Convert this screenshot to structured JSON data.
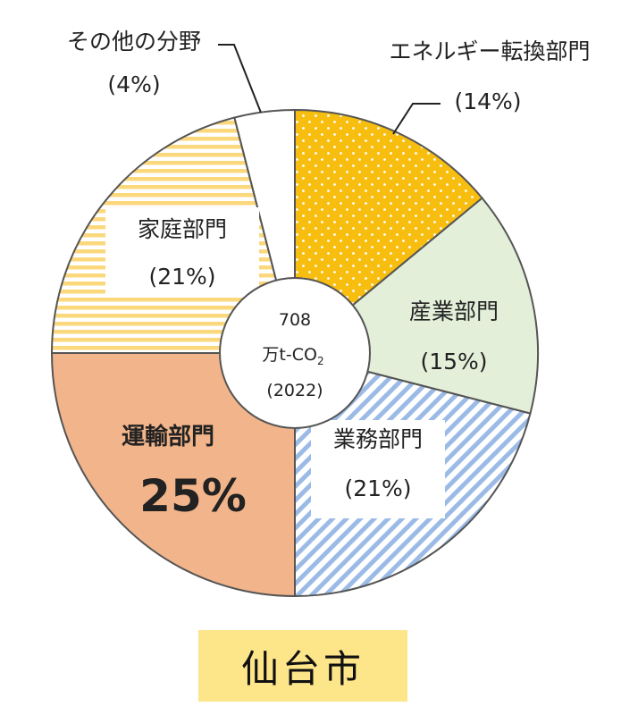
{
  "chart_data": {
    "type": "pie",
    "slices": [
      {
        "label": "エネルギー転換部門",
        "pct_label": "(14%)",
        "value": 14,
        "color": "#f7be10",
        "pattern": "dots"
      },
      {
        "label": "産業部門",
        "pct_label": "(15%)",
        "value": 15,
        "color": "#e3efd9",
        "pattern": "solid"
      },
      {
        "label": "業務部門",
        "pct_label": "(21%)",
        "value": 21,
        "color": "#9bbbe6",
        "pattern": "diagonal"
      },
      {
        "label": "運輸部門",
        "pct_label": "25%",
        "value": 25,
        "color": "#f2b48a",
        "pattern": "solid"
      },
      {
        "label": "家庭部門",
        "pct_label": "(21%)",
        "value": 21,
        "color": "#fbd87c",
        "pattern": "horizontal"
      },
      {
        "label": "その他の分野",
        "pct_label": "(4%)",
        "value": 4,
        "color": "#ffffff",
        "pattern": "solid"
      }
    ],
    "center": {
      "total": "708",
      "unit_main": "万t-CO",
      "unit_sub": "2",
      "year": "(2022)"
    }
  },
  "city": "仙台市"
}
